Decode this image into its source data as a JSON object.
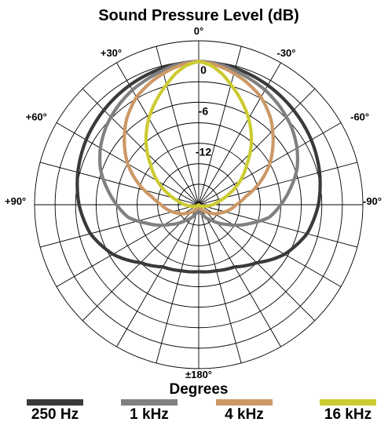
{
  "chart_data": {
    "type": "polar",
    "title": "Sound Pressure Level (dB)",
    "xlabel": "Degrees",
    "radial_range_db": [
      -21,
      3
    ],
    "radial_tick_labels": [
      {
        "db": 0,
        "label": "0"
      },
      {
        "db": -6,
        "label": "-6"
      },
      {
        "db": -12,
        "label": "-12"
      }
    ],
    "angle_tick_labels": [
      {
        "angle": 0,
        "label": "0°"
      },
      {
        "angle": 30,
        "label": "-30°"
      },
      {
        "angle": 60,
        "label": "-60°"
      },
      {
        "angle": 90,
        "label": "-90°"
      },
      {
        "angle": 180,
        "label": "±180°"
      },
      {
        "angle": -90,
        "label": "+90°"
      },
      {
        "angle": -60,
        "label": "+60°"
      },
      {
        "angle": -30,
        "label": "+30°"
      }
    ],
    "series": [
      {
        "name": "250 Hz",
        "color": "#3a3a3a",
        "symmetric": true,
        "angles": [
          0,
          15,
          30,
          45,
          60,
          75,
          90,
          105,
          120,
          135,
          150,
          165,
          180
        ],
        "values": [
          0,
          -0.3,
          -0.8,
          -1.4,
          -2.0,
          -2.7,
          -3.5,
          -4.6,
          -6.5,
          -9.0,
          -10.5,
          -11.0,
          -11.2
        ]
      },
      {
        "name": "1 kHz",
        "color": "#808080",
        "symmetric": true,
        "angles": [
          0,
          10,
          20,
          30,
          40,
          50,
          60,
          70,
          80,
          90,
          100,
          110,
          125,
          140,
          160,
          180
        ],
        "values": [
          0,
          -0.3,
          -1.0,
          -1.6,
          -2.4,
          -3.3,
          -4.4,
          -5.7,
          -7.4,
          -9.0,
          -10.5,
          -13.0,
          -16.0,
          -18.0,
          -19.5,
          -20.5
        ]
      },
      {
        "name": "4 kHz",
        "color": "#cc9866",
        "symmetric": true,
        "angles": [
          0,
          6,
          12,
          20,
          30,
          40,
          50,
          60,
          70,
          80,
          90,
          100,
          110,
          125,
          140,
          160,
          180
        ],
        "values": [
          0,
          -0.3,
          -0.8,
          -1.6,
          -2.8,
          -4.6,
          -6.8,
          -9.0,
          -11.5,
          -14.0,
          -15.5,
          -16.5,
          -17.5,
          -18.8,
          -19.8,
          -20.6,
          -21
        ]
      },
      {
        "name": "16 kHz",
        "color": "#cccc33",
        "symmetric": true,
        "angles": [
          0,
          5,
          10,
          15,
          20,
          25,
          30,
          40,
          50,
          60,
          70,
          80,
          90,
          100,
          115,
          130,
          150,
          180
        ],
        "values": [
          0,
          -0.5,
          -1.5,
          -2.8,
          -4.0,
          -5.2,
          -6.4,
          -9.0,
          -11.8,
          -14.0,
          -16.2,
          -18.0,
          -19.0,
          -19.8,
          -20.5,
          -20.8,
          -21,
          -21
        ]
      }
    ],
    "legend": [
      "250 Hz",
      "1 kHz",
      "4 kHz",
      "16 kHz"
    ],
    "legend_position": "bottom"
  }
}
